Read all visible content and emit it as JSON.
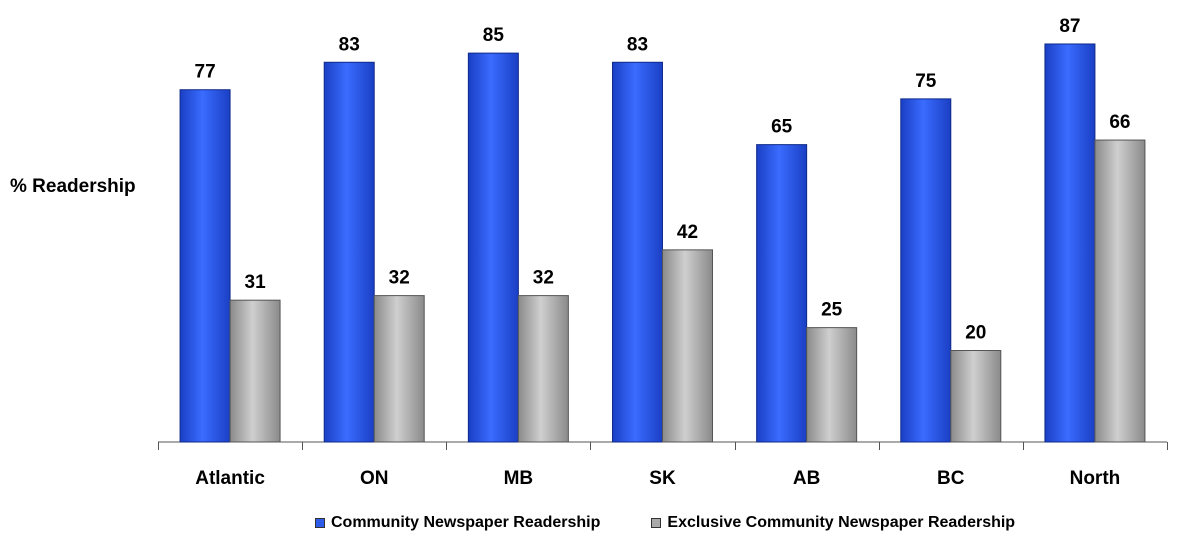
{
  "colors": {
    "series1": "#2e5ce8",
    "series2": "#a9a9a9",
    "axis": "#555555",
    "text": "#000000"
  },
  "chart_data": {
    "type": "bar",
    "title": "",
    "xlabel": "",
    "ylabel": "% Readership",
    "ylim": [
      0,
      90
    ],
    "grid": false,
    "legend_position": "bottom",
    "categories": [
      "Atlantic",
      "ON",
      "MB",
      "SK",
      "AB",
      "BC",
      "North"
    ],
    "series": [
      {
        "name": "Community Newspaper Readership",
        "values": [
          77,
          83,
          85,
          83,
          65,
          75,
          87
        ]
      },
      {
        "name": "Exclusive Community Newspaper Readership",
        "values": [
          31,
          32,
          32,
          42,
          25,
          20,
          66
        ]
      }
    ]
  }
}
